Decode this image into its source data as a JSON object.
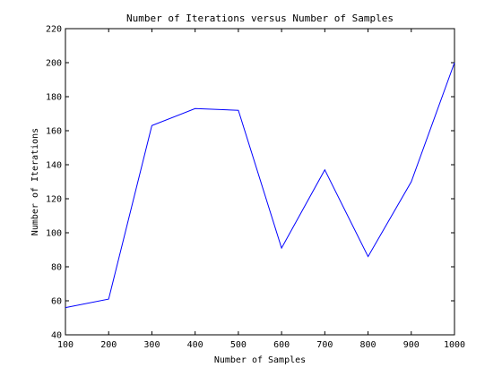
{
  "chart_data": {
    "type": "line",
    "title": "Number of Iterations versus Number of Samples",
    "xlabel": "Number of Samples",
    "ylabel": "Number of Iterations",
    "xlim": [
      100,
      1000
    ],
    "ylim": [
      40,
      220
    ],
    "xticks": [
      100,
      200,
      300,
      400,
      500,
      600,
      700,
      800,
      900,
      1000
    ],
    "yticks": [
      40,
      60,
      80,
      100,
      120,
      140,
      160,
      180,
      200,
      220
    ],
    "grid": false,
    "series": [
      {
        "color": "#0000ff",
        "x": [
          100,
          200,
          300,
          400,
          500,
          600,
          700,
          800,
          900,
          1000
        ],
        "y": [
          56,
          61,
          163,
          173,
          172,
          91,
          137,
          86,
          130,
          200
        ]
      }
    ]
  }
}
